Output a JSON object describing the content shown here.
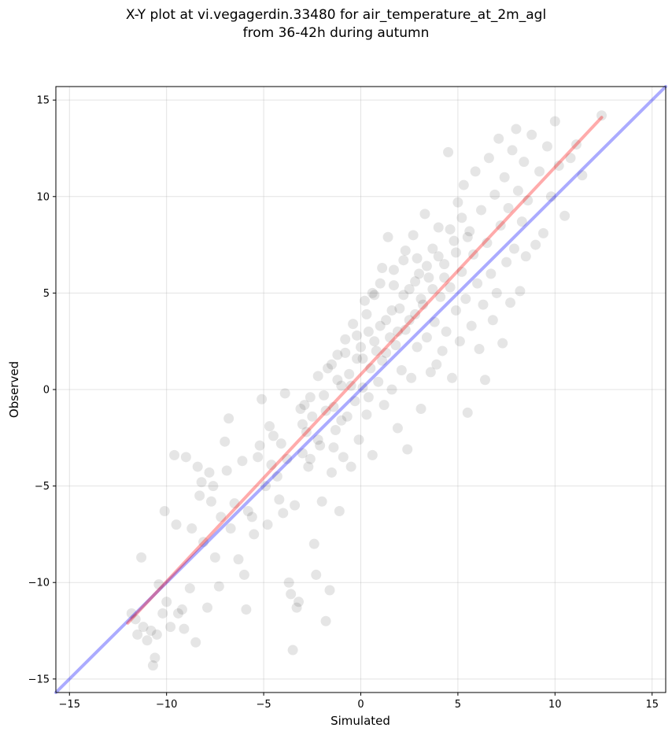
{
  "chart_data": {
    "type": "scatter",
    "title_line1": "X-Y plot at vi.vegagerdin.33480 for air_temperature_at_2m_agl",
    "title_line2": "from 36-42h during autumn",
    "xlabel": "Simulated",
    "ylabel": "Observed",
    "xlim": [
      -15.7,
      15.7
    ],
    "ylim": [
      -15.7,
      15.7
    ],
    "xticks": [
      -15,
      -10,
      -5,
      0,
      5,
      10,
      15
    ],
    "yticks": [
      -15,
      -10,
      -5,
      0,
      5,
      10,
      15
    ],
    "xtick_labels": [
      "−15",
      "−10",
      "−5",
      "0",
      "5",
      "10",
      "15"
    ],
    "ytick_labels": [
      "−15",
      "−10",
      "−5",
      "0",
      "5",
      "10",
      "15"
    ],
    "grid": true,
    "point_color": "#000000",
    "point_alpha": 0.1,
    "fit_line": {
      "color": "#ff0000",
      "x": [
        -12,
        12.4
      ],
      "y": [
        -12.1,
        14.1
      ]
    },
    "identity_line": {
      "color": "#0000ff",
      "x": [
        -15.7,
        15.7
      ],
      "y": [
        -15.7,
        15.7
      ]
    },
    "series": [
      {
        "points": [
          [
            -11.8,
            -11.6
          ],
          [
            -11.6,
            -11.9
          ],
          [
            -11.5,
            -12.7
          ],
          [
            -11.3,
            -8.7
          ],
          [
            -11.2,
            -12.3
          ],
          [
            -11.0,
            -13.0
          ],
          [
            -10.8,
            -12.5
          ],
          [
            -10.7,
            -14.3
          ],
          [
            -10.6,
            -13.9
          ],
          [
            -10.5,
            -12.7
          ],
          [
            -10.4,
            -10.1
          ],
          [
            -10.2,
            -11.6
          ],
          [
            -10.1,
            -6.3
          ],
          [
            -10.0,
            -11.0
          ],
          [
            -9.8,
            -12.3
          ],
          [
            -9.6,
            -3.4
          ],
          [
            -9.5,
            -7.0
          ],
          [
            -9.4,
            -11.6
          ],
          [
            -9.2,
            -11.4
          ],
          [
            -9.1,
            -12.4
          ],
          [
            -9.0,
            -3.5
          ],
          [
            -8.8,
            -10.3
          ],
          [
            -8.7,
            -7.2
          ],
          [
            -8.5,
            -13.1
          ],
          [
            -8.4,
            -4.0
          ],
          [
            -8.3,
            -5.5
          ],
          [
            -8.2,
            -4.8
          ],
          [
            -8.1,
            -7.9
          ],
          [
            -7.9,
            -11.3
          ],
          [
            -7.8,
            -4.3
          ],
          [
            -7.7,
            -5.8
          ],
          [
            -7.6,
            -5.0
          ],
          [
            -7.5,
            -8.7
          ],
          [
            -7.3,
            -10.2
          ],
          [
            -7.2,
            -6.6
          ],
          [
            -7.0,
            -2.7
          ],
          [
            -6.9,
            -4.2
          ],
          [
            -6.8,
            -1.5
          ],
          [
            -6.7,
            -7.2
          ],
          [
            -6.5,
            -5.9
          ],
          [
            -6.3,
            -8.8
          ],
          [
            -6.1,
            -3.7
          ],
          [
            -6.0,
            -9.6
          ],
          [
            -5.9,
            -11.4
          ],
          [
            -5.8,
            -6.3
          ],
          [
            -5.6,
            -6.6
          ],
          [
            -5.5,
            -7.5
          ],
          [
            -5.3,
            -3.5
          ],
          [
            -5.2,
            -2.9
          ],
          [
            -5.1,
            -0.5
          ],
          [
            -4.9,
            -5.0
          ],
          [
            -4.8,
            -7.0
          ],
          [
            -4.7,
            -1.9
          ],
          [
            -4.6,
            -3.9
          ],
          [
            -4.5,
            -2.4
          ],
          [
            -4.3,
            -4.5
          ],
          [
            -4.2,
            -5.7
          ],
          [
            -4.1,
            -2.8
          ],
          [
            -4.0,
            -6.4
          ],
          [
            -3.9,
            -0.2
          ],
          [
            -3.8,
            -3.6
          ],
          [
            -3.7,
            -10.0
          ],
          [
            -3.6,
            -10.6
          ],
          [
            -3.5,
            -13.5
          ],
          [
            -3.4,
            -6.0
          ],
          [
            -3.3,
            -11.3
          ],
          [
            -3.2,
            -11.0
          ],
          [
            -3.1,
            -1.0
          ],
          [
            -3.0,
            -3.3
          ],
          [
            -2.9,
            -0.8
          ],
          [
            -2.8,
            -2.2
          ],
          [
            -2.7,
            -4.0
          ],
          [
            -2.6,
            -3.6
          ],
          [
            -2.5,
            -1.4
          ],
          [
            -2.4,
            -8.0
          ],
          [
            -2.3,
            -9.6
          ],
          [
            -2.2,
            0.7
          ],
          [
            -2.1,
            -2.9
          ],
          [
            -2.0,
            -5.8
          ],
          [
            -1.9,
            -0.3
          ],
          [
            -1.8,
            -12.0
          ],
          [
            -1.7,
            1.1
          ],
          [
            -1.6,
            -10.4
          ],
          [
            -1.5,
            -4.3
          ],
          [
            -1.4,
            -0.9
          ],
          [
            -1.3,
            -2.1
          ],
          [
            -1.2,
            1.8
          ],
          [
            -1.1,
            -6.3
          ],
          [
            -1.0,
            0.2
          ],
          [
            -0.9,
            -3.5
          ],
          [
            -0.8,
            2.6
          ],
          [
            -0.7,
            -1.4
          ],
          [
            -0.6,
            0.8
          ],
          [
            -0.5,
            -4.0
          ],
          [
            -0.4,
            3.4
          ],
          [
            -0.3,
            -0.6
          ],
          [
            -0.2,
            1.6
          ],
          [
            -0.1,
            -2.6
          ],
          [
            0.0,
            2.2
          ],
          [
            0.1,
            0.1
          ],
          [
            0.2,
            4.6
          ],
          [
            0.3,
            -1.3
          ],
          [
            0.4,
            3.0
          ],
          [
            0.5,
            1.1
          ],
          [
            0.6,
            -3.4
          ],
          [
            0.7,
            4.9
          ],
          [
            0.8,
            2.0
          ],
          [
            0.9,
            0.4
          ],
          [
            1.0,
            5.5
          ],
          [
            1.1,
            1.5
          ],
          [
            1.2,
            -0.8
          ],
          [
            1.3,
            3.6
          ],
          [
            1.4,
            7.9
          ],
          [
            1.5,
            2.7
          ],
          [
            1.6,
            0.0
          ],
          [
            1.7,
            6.2
          ],
          [
            1.8,
            2.3
          ],
          [
            1.9,
            -2.0
          ],
          [
            2.0,
            4.2
          ],
          [
            2.1,
            1.0
          ],
          [
            2.2,
            6.7
          ],
          [
            2.3,
            3.1
          ],
          [
            2.4,
            -3.1
          ],
          [
            2.5,
            5.2
          ],
          [
            2.6,
            0.6
          ],
          [
            2.7,
            8.0
          ],
          [
            2.8,
            3.9
          ],
          [
            2.9,
            2.2
          ],
          [
            3.0,
            6.0
          ],
          [
            3.1,
            -1.0
          ],
          [
            3.2,
            4.4
          ],
          [
            3.3,
            9.1
          ],
          [
            3.4,
            2.7
          ],
          [
            3.5,
            5.8
          ],
          [
            3.6,
            0.9
          ],
          [
            3.7,
            7.3
          ],
          [
            3.8,
            3.5
          ],
          [
            3.9,
            1.3
          ],
          [
            4.0,
            8.4
          ],
          [
            4.1,
            4.8
          ],
          [
            4.2,
            2.0
          ],
          [
            4.3,
            6.5
          ],
          [
            4.4,
            3.0
          ],
          [
            4.5,
            12.3
          ],
          [
            4.6,
            5.3
          ],
          [
            4.7,
            0.6
          ],
          [
            4.8,
            7.7
          ],
          [
            4.9,
            4.1
          ],
          [
            5.0,
            9.7
          ],
          [
            5.1,
            2.5
          ],
          [
            5.2,
            6.1
          ],
          [
            5.3,
            10.6
          ],
          [
            5.4,
            4.7
          ],
          [
            5.5,
            -1.2
          ],
          [
            5.6,
            8.2
          ],
          [
            5.7,
            3.3
          ],
          [
            5.8,
            7.0
          ],
          [
            5.9,
            11.3
          ],
          [
            6.0,
            5.5
          ],
          [
            6.1,
            2.1
          ],
          [
            6.2,
            9.3
          ],
          [
            6.3,
            4.4
          ],
          [
            6.4,
            0.5
          ],
          [
            6.5,
            7.6
          ],
          [
            6.6,
            12.0
          ],
          [
            6.7,
            6.0
          ],
          [
            6.8,
            3.6
          ],
          [
            6.9,
            10.1
          ],
          [
            7.0,
            5.0
          ],
          [
            7.1,
            13.0
          ],
          [
            7.2,
            8.5
          ],
          [
            7.3,
            2.4
          ],
          [
            7.4,
            11.0
          ],
          [
            7.5,
            6.6
          ],
          [
            7.6,
            9.4
          ],
          [
            7.7,
            4.5
          ],
          [
            7.8,
            12.4
          ],
          [
            7.9,
            7.3
          ],
          [
            8.0,
            13.5
          ],
          [
            8.1,
            10.3
          ],
          [
            8.2,
            5.1
          ],
          [
            8.3,
            8.7
          ],
          [
            8.4,
            11.8
          ],
          [
            8.5,
            6.9
          ],
          [
            8.6,
            9.8
          ],
          [
            8.8,
            13.2
          ],
          [
            9.0,
            7.5
          ],
          [
            9.2,
            11.3
          ],
          [
            9.4,
            8.1
          ],
          [
            9.6,
            12.6
          ],
          [
            9.8,
            10.0
          ],
          [
            10.0,
            13.9
          ],
          [
            10.2,
            11.6
          ],
          [
            10.5,
            9.0
          ],
          [
            10.8,
            12.0
          ],
          [
            11.1,
            12.7
          ],
          [
            11.4,
            11.1
          ],
          [
            12.4,
            14.2
          ],
          [
            -1.5,
            1.3
          ],
          [
            -1.2,
            0.5
          ],
          [
            -0.8,
            1.9
          ],
          [
            -0.5,
            0.2
          ],
          [
            -0.2,
            2.8
          ],
          [
            0.1,
            1.6
          ],
          [
            0.4,
            -0.4
          ],
          [
            0.7,
            2.5
          ],
          [
            1.0,
            3.3
          ],
          [
            1.3,
            1.9
          ],
          [
            1.6,
            4.1
          ],
          [
            1.9,
            3.0
          ],
          [
            2.2,
            4.9
          ],
          [
            2.5,
            3.6
          ],
          [
            2.8,
            5.6
          ],
          [
            3.1,
            4.7
          ],
          [
            3.4,
            6.4
          ],
          [
            3.7,
            5.2
          ],
          [
            4.0,
            6.9
          ],
          [
            4.3,
            5.8
          ],
          [
            4.6,
            8.3
          ],
          [
            4.9,
            7.1
          ],
          [
            5.2,
            8.9
          ],
          [
            5.5,
            7.9
          ],
          [
            -3.0,
            -1.8
          ],
          [
            -2.6,
            -0.4
          ],
          [
            -2.2,
            -2.6
          ],
          [
            -1.8,
            -1.1
          ],
          [
            -1.4,
            -3.0
          ],
          [
            -1.0,
            -1.6
          ],
          [
            0.3,
            3.9
          ],
          [
            0.6,
            5.0
          ],
          [
            1.1,
            6.3
          ],
          [
            1.7,
            5.4
          ],
          [
            2.3,
            7.2
          ],
          [
            2.9,
            6.8
          ]
        ]
      }
    ]
  }
}
